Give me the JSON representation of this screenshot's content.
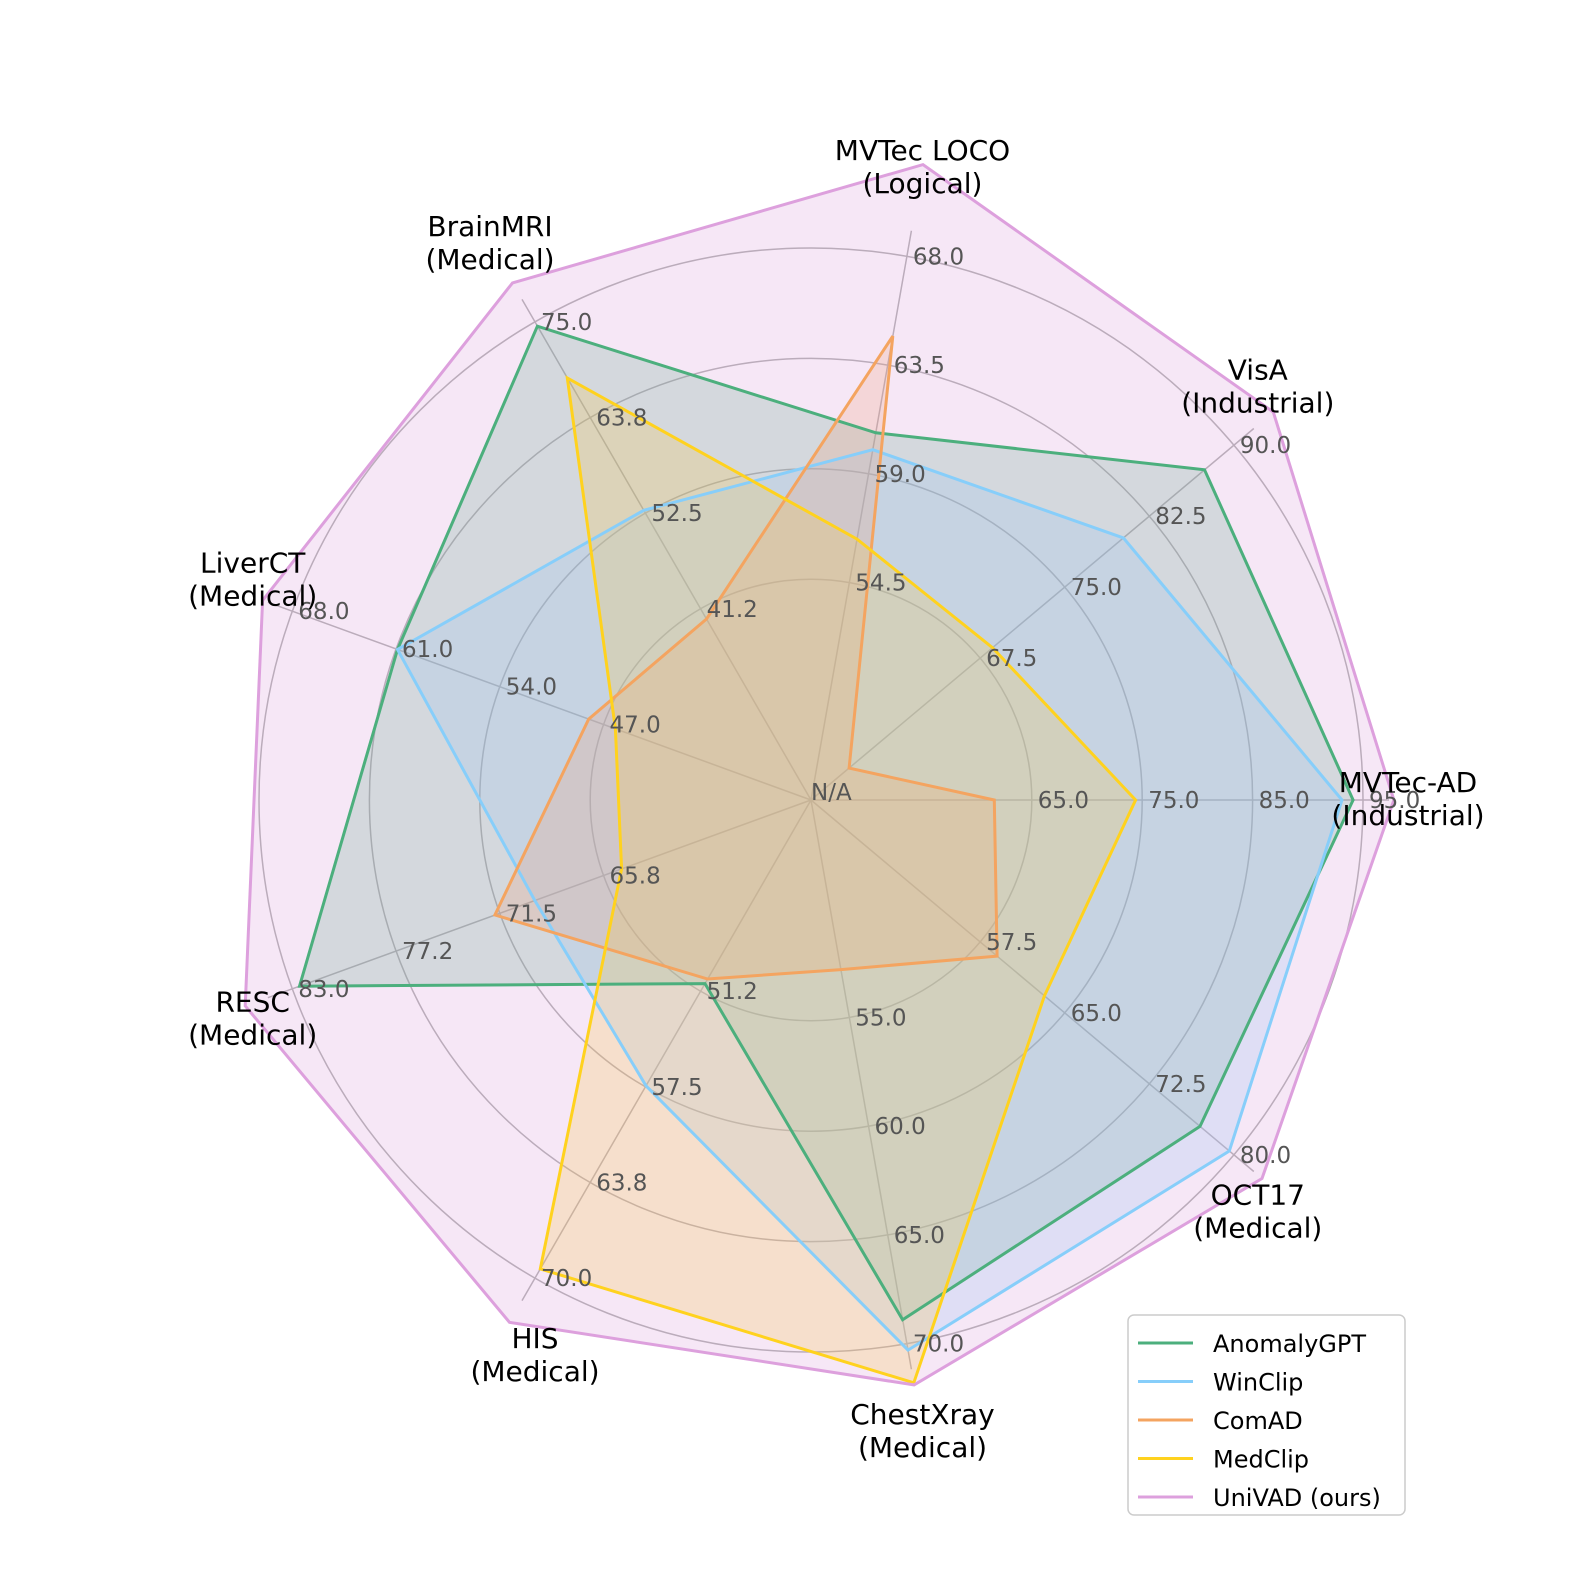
{
  "chart_data": {
    "type": "radar",
    "center_label": "N/A",
    "axes": [
      {
        "line1": "MVTec-AD",
        "line2": "(Industrial)",
        "ticks": [
          "65.0",
          "75.0",
          "85.0",
          "95.0"
        ]
      },
      {
        "line1": "VisA",
        "line2": "(Industrial)",
        "ticks": [
          "67.5",
          "75.0",
          "82.5",
          "90.0"
        ]
      },
      {
        "line1": "MVTec LOCO",
        "line2": "(Logical)",
        "ticks": [
          "54.5",
          "59.0",
          "63.5",
          "68.0"
        ]
      },
      {
        "line1": "BrainMRI",
        "line2": "(Medical)",
        "ticks": [
          "41.2",
          "52.5",
          "63.8",
          "75.0"
        ]
      },
      {
        "line1": "LiverCT",
        "line2": "(Medical)",
        "ticks": [
          "47.0",
          "54.0",
          "61.0",
          "68.0"
        ]
      },
      {
        "line1": "RESC",
        "line2": "(Medical)",
        "ticks": [
          "65.8",
          "71.5",
          "77.2",
          "83.0"
        ]
      },
      {
        "line1": "HIS",
        "line2": "(Medical)",
        "ticks": [
          "51.2",
          "57.5",
          "63.8",
          "70.0"
        ]
      },
      {
        "line1": "ChestXray",
        "line2": "(Medical)",
        "ticks": [
          "55.0",
          "60.0",
          "65.0",
          "70.0"
        ]
      },
      {
        "line1": "OCT17",
        "line2": "(Medical)",
        "ticks": [
          "57.5",
          "65.0",
          "72.5",
          "80.0"
        ]
      }
    ],
    "series": [
      {
        "name": "AnomalyGPT",
        "color": "#4caf7d",
        "values": [
          94.1,
          87.4,
          60.7,
          74.5,
          60.9,
          82.6,
          50.7,
          68.9,
          77.0
        ]
      },
      {
        "name": "WinClip",
        "color": "#87cefa",
        "values": [
          93.1,
          80.2,
          60.0,
          52.8,
          60.9,
          69.6,
          57.4,
          70.3,
          79.6
        ]
      },
      {
        "name": "ComAD",
        "color": "#f4a460",
        "values": [
          61.6,
          null,
          64.7,
          40.0,
          48.0,
          71.8,
          50.4,
          52.8,
          59.0
        ]
      },
      {
        "name": "MedClip",
        "color": "#ffd21e",
        "values": [
          74.4,
          68.6,
          56.3,
          68.4,
          46.2,
          64.8,
          69.4,
          71.8,
          63.2
        ]
      },
      {
        "name": "UniVAD (ours)",
        "color": "#dda0dd",
        "values": [
          97.8,
          93.5,
          71.8,
          79.6,
          70.0,
          85.6,
          72.9,
          71.9,
          82.5
        ]
      }
    ]
  }
}
